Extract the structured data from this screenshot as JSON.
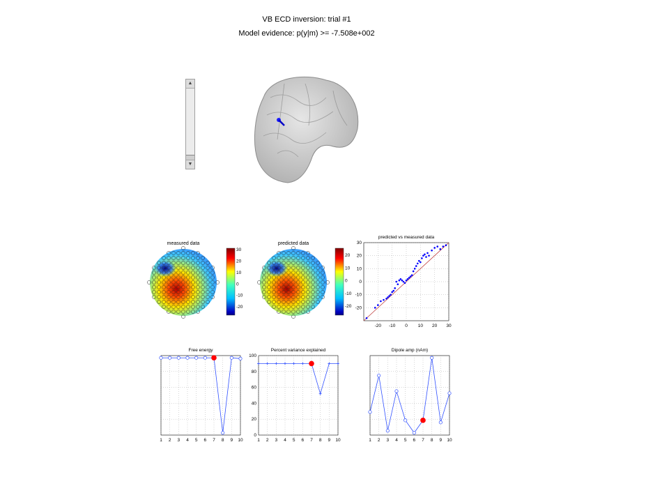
{
  "header": {
    "title": "VB ECD inversion: trial #1",
    "evidence": "Model evidence: p(y|m) >= -7.508e+002"
  },
  "slider": {
    "up_icon": "arrow-up-icon",
    "down_icon": "arrow-down-icon"
  },
  "topo_measured": {
    "title": "measured data",
    "colorbar_ticks": [
      "30",
      "20",
      "10",
      "0",
      "-10",
      "-20"
    ]
  },
  "topo_predicted": {
    "title": "predicted data",
    "colorbar_ticks": [
      "20",
      "10",
      "0",
      "-10",
      "-20"
    ]
  },
  "chart_data": [
    {
      "type": "scatter",
      "title": "predicted vs measured data",
      "xlim": [
        -30,
        30
      ],
      "ylim": [
        -30,
        30
      ],
      "xticks": [
        -20,
        -10,
        0,
        10,
        20,
        30
      ],
      "yticks": [
        -20,
        -10,
        0,
        10,
        20,
        30
      ],
      "grid": true,
      "reference_line": "y = x",
      "points_x": [
        -28,
        -22,
        -20,
        -18,
        -16,
        -14,
        -13,
        -12,
        -11,
        -10,
        -9,
        -8,
        -7,
        -6,
        -5,
        -4,
        -3,
        -2,
        -1,
        0,
        1,
        2,
        3,
        4,
        5,
        6,
        7,
        8,
        9,
        10,
        11,
        12,
        13,
        14,
        15,
        16,
        18,
        20,
        22,
        24,
        26,
        28
      ],
      "points_y": [
        -28,
        -20,
        -18,
        -15,
        -14,
        -13,
        -12,
        -11,
        -10,
        -8,
        -7,
        -5,
        0,
        -2,
        1,
        2,
        1,
        0,
        -1,
        1,
        2,
        3,
        4,
        5,
        8,
        10,
        12,
        14,
        16,
        15,
        18,
        20,
        21,
        19,
        22,
        20,
        24,
        26,
        27,
        25,
        27,
        28
      ]
    },
    {
      "type": "line",
      "title": "Free energy",
      "x": [
        1,
        2,
        3,
        4,
        5,
        6,
        7,
        8,
        9,
        10
      ],
      "values": [
        0.0,
        0.0,
        0.0,
        0.0,
        0.0,
        0.0,
        0.0,
        -1.0,
        0.0,
        -0.01
      ],
      "highlight_index": 7,
      "xticks": [
        1,
        2,
        3,
        4,
        5,
        6,
        7,
        8,
        9,
        10
      ],
      "grid": true
    },
    {
      "type": "line",
      "title": "Percent variance explained",
      "x": [
        1,
        2,
        3,
        4,
        5,
        6,
        7,
        8,
        9,
        10
      ],
      "values": [
        90,
        90,
        90,
        90,
        90,
        90,
        90,
        52,
        90,
        90
      ],
      "highlight_index": 7,
      "ylim": [
        0,
        100
      ],
      "xticks": [
        1,
        2,
        3,
        4,
        5,
        6,
        7,
        8,
        9,
        10
      ],
      "yticks": [
        0,
        20,
        40,
        60,
        80,
        100
      ],
      "grid": true
    },
    {
      "type": "line",
      "title": "Dipole amp (nAm)",
      "x": [
        1,
        2,
        3,
        4,
        5,
        6,
        7,
        8,
        9,
        10
      ],
      "values": [
        30,
        65,
        12,
        50,
        22,
        10,
        22,
        82,
        20,
        48
      ],
      "highlight_index": 7,
      "xticks": [
        1,
        2,
        3,
        4,
        5,
        6,
        7,
        8,
        9,
        10
      ],
      "grid": true
    }
  ]
}
